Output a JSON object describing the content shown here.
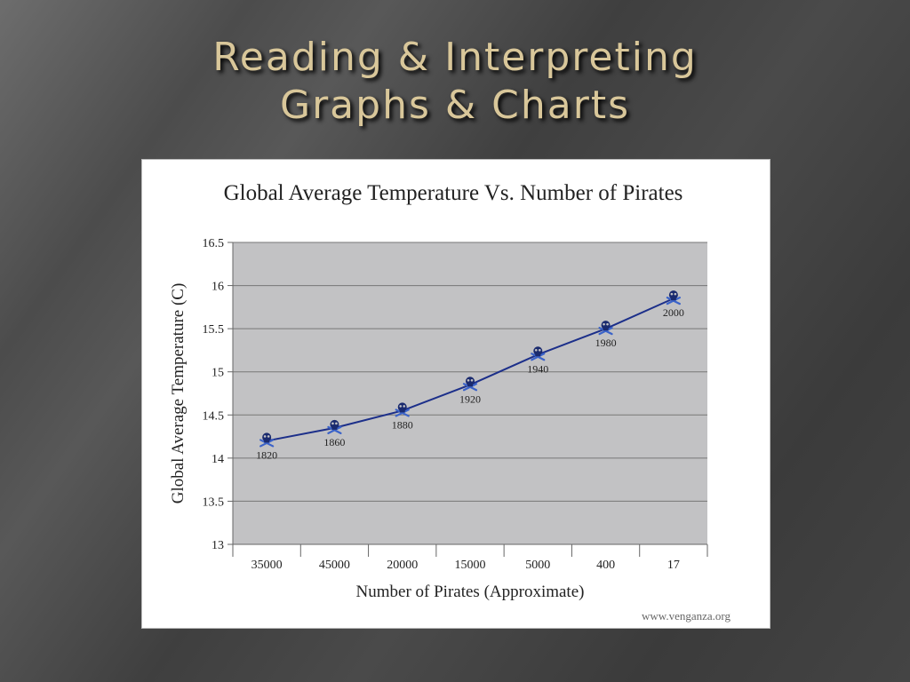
{
  "slide": {
    "title_line1": "Reading & Interpreting",
    "title_line2": "Graphs & Charts"
  },
  "chart_data": {
    "type": "line",
    "title": "Global Average Temperature Vs. Number of Pirates",
    "xlabel": "Number of Pirates (Approximate)",
    "ylabel": "Global Average Temperature (C)",
    "categories": [
      "35000",
      "45000",
      "20000",
      "15000",
      "5000",
      "400",
      "17"
    ],
    "series": [
      {
        "values": [
          14.2,
          14.35,
          14.55,
          14.85,
          15.2,
          15.5,
          15.85
        ],
        "point_labels": [
          "1820",
          "1860",
          "1880",
          "1920",
          "1940",
          "1980",
          "2000"
        ]
      }
    ],
    "ylim": [
      13,
      16.5
    ],
    "yticks": [
      "13",
      "13.5",
      "14",
      "14.5",
      "15",
      "15.5",
      "16",
      "16.5"
    ],
    "grid": true,
    "marker": "skull-and-crossbones-icon",
    "source": "www.venganza.org",
    "colors": {
      "line": "#1c2f8a",
      "plot_bg": "#c2c2c4",
      "grid": "#777777",
      "marker": "#3b63c9"
    }
  }
}
